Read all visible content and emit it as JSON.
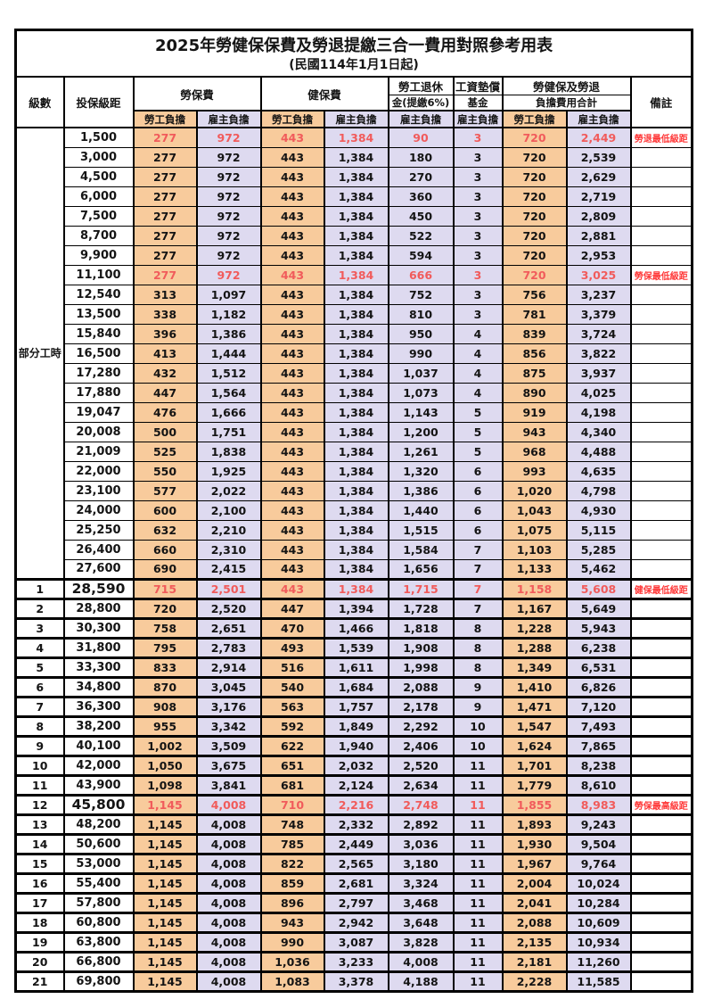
{
  "title": "2025年勞健保保費及勞退提繳三合一費用對照參考用表",
  "subtitle": "(民國114年1月1日起)",
  "header": {
    "grade": "級數",
    "bracket": "投保級距",
    "labor_insurance": "勞保費",
    "health_insurance": "健保費",
    "pension_line1": "勞工退休",
    "pension_line2": "金(提繳6%)",
    "wage_fund_line1": "工資墊償",
    "wage_fund_line2": "基金",
    "total_line1": "勞健保及勞退",
    "total_line2": "負擔費用合計",
    "remark": "備註",
    "employee": "勞工負擔",
    "employer": "雇主負擔"
  },
  "part_time_label": "部分工時",
  "colors": {
    "employee_bg": "#F8CB9C",
    "employer_bg": "#DEDAF0",
    "highlight_value_text": "#F15B5B",
    "remark_text": "#FF3838",
    "border": "#000000"
  },
  "rows": [
    {
      "section": "part",
      "grade": "",
      "bracket": "1,500",
      "values": [
        "277",
        "972",
        "443",
        "1,384",
        "90",
        "3",
        "720",
        "2,449"
      ],
      "remark": "勞退最低級距",
      "highlight": true,
      "bold_bracket": false
    },
    {
      "section": "part",
      "grade": "",
      "bracket": "3,000",
      "values": [
        "277",
        "972",
        "443",
        "1,384",
        "180",
        "3",
        "720",
        "2,539"
      ],
      "remark": "",
      "highlight": false,
      "bold_bracket": false
    },
    {
      "section": "part",
      "grade": "",
      "bracket": "4,500",
      "values": [
        "277",
        "972",
        "443",
        "1,384",
        "270",
        "3",
        "720",
        "2,629"
      ],
      "remark": "",
      "highlight": false,
      "bold_bracket": false
    },
    {
      "section": "part",
      "grade": "",
      "bracket": "6,000",
      "values": [
        "277",
        "972",
        "443",
        "1,384",
        "360",
        "3",
        "720",
        "2,719"
      ],
      "remark": "",
      "highlight": false,
      "bold_bracket": false
    },
    {
      "section": "part",
      "grade": "",
      "bracket": "7,500",
      "values": [
        "277",
        "972",
        "443",
        "1,384",
        "450",
        "3",
        "720",
        "2,809"
      ],
      "remark": "",
      "highlight": false,
      "bold_bracket": false
    },
    {
      "section": "part",
      "grade": "",
      "bracket": "8,700",
      "values": [
        "277",
        "972",
        "443",
        "1,384",
        "522",
        "3",
        "720",
        "2,881"
      ],
      "remark": "",
      "highlight": false,
      "bold_bracket": false
    },
    {
      "section": "part",
      "grade": "",
      "bracket": "9,900",
      "values": [
        "277",
        "972",
        "443",
        "1,384",
        "594",
        "3",
        "720",
        "2,953"
      ],
      "remark": "",
      "highlight": false,
      "bold_bracket": false
    },
    {
      "section": "part",
      "grade": "",
      "bracket": "11,100",
      "values": [
        "277",
        "972",
        "443",
        "1,384",
        "666",
        "3",
        "720",
        "3,025"
      ],
      "remark": "勞保最低級距",
      "highlight": true,
      "bold_bracket": false
    },
    {
      "section": "part",
      "grade": "",
      "bracket": "12,540",
      "values": [
        "313",
        "1,097",
        "443",
        "1,384",
        "752",
        "3",
        "756",
        "3,237"
      ],
      "remark": "",
      "highlight": false,
      "bold_bracket": false
    },
    {
      "section": "part",
      "grade": "",
      "bracket": "13,500",
      "values": [
        "338",
        "1,182",
        "443",
        "1,384",
        "810",
        "3",
        "781",
        "3,379"
      ],
      "remark": "",
      "highlight": false,
      "bold_bracket": false
    },
    {
      "section": "part",
      "grade": "",
      "bracket": "15,840",
      "values": [
        "396",
        "1,386",
        "443",
        "1,384",
        "950",
        "4",
        "839",
        "3,724"
      ],
      "remark": "",
      "highlight": false,
      "bold_bracket": false
    },
    {
      "section": "part",
      "grade": "",
      "bracket": "16,500",
      "values": [
        "413",
        "1,444",
        "443",
        "1,384",
        "990",
        "4",
        "856",
        "3,822"
      ],
      "remark": "",
      "highlight": false,
      "bold_bracket": false
    },
    {
      "section": "part",
      "grade": "",
      "bracket": "17,280",
      "values": [
        "432",
        "1,512",
        "443",
        "1,384",
        "1,037",
        "4",
        "875",
        "3,937"
      ],
      "remark": "",
      "highlight": false,
      "bold_bracket": false
    },
    {
      "section": "part",
      "grade": "",
      "bracket": "17,880",
      "values": [
        "447",
        "1,564",
        "443",
        "1,384",
        "1,073",
        "4",
        "890",
        "4,025"
      ],
      "remark": "",
      "highlight": false,
      "bold_bracket": false
    },
    {
      "section": "part",
      "grade": "",
      "bracket": "19,047",
      "values": [
        "476",
        "1,666",
        "443",
        "1,384",
        "1,143",
        "5",
        "919",
        "4,198"
      ],
      "remark": "",
      "highlight": false,
      "bold_bracket": false
    },
    {
      "section": "part",
      "grade": "",
      "bracket": "20,008",
      "values": [
        "500",
        "1,751",
        "443",
        "1,384",
        "1,200",
        "5",
        "943",
        "4,340"
      ],
      "remark": "",
      "highlight": false,
      "bold_bracket": false
    },
    {
      "section": "part",
      "grade": "",
      "bracket": "21,009",
      "values": [
        "525",
        "1,838",
        "443",
        "1,384",
        "1,261",
        "5",
        "968",
        "4,488"
      ],
      "remark": "",
      "highlight": false,
      "bold_bracket": false
    },
    {
      "section": "part",
      "grade": "",
      "bracket": "22,000",
      "values": [
        "550",
        "1,925",
        "443",
        "1,384",
        "1,320",
        "6",
        "993",
        "4,635"
      ],
      "remark": "",
      "highlight": false,
      "bold_bracket": false
    },
    {
      "section": "part",
      "grade": "",
      "bracket": "23,100",
      "values": [
        "577",
        "2,022",
        "443",
        "1,384",
        "1,386",
        "6",
        "1,020",
        "4,798"
      ],
      "remark": "",
      "highlight": false,
      "bold_bracket": false
    },
    {
      "section": "part",
      "grade": "",
      "bracket": "24,000",
      "values": [
        "600",
        "2,100",
        "443",
        "1,384",
        "1,440",
        "6",
        "1,043",
        "4,930"
      ],
      "remark": "",
      "highlight": false,
      "bold_bracket": false
    },
    {
      "section": "part",
      "grade": "",
      "bracket": "25,250",
      "values": [
        "632",
        "2,210",
        "443",
        "1,384",
        "1,515",
        "6",
        "1,075",
        "5,115"
      ],
      "remark": "",
      "highlight": false,
      "bold_bracket": false
    },
    {
      "section": "part",
      "grade": "",
      "bracket": "26,400",
      "values": [
        "660",
        "2,310",
        "443",
        "1,384",
        "1,584",
        "7",
        "1,103",
        "5,285"
      ],
      "remark": "",
      "highlight": false,
      "bold_bracket": false
    },
    {
      "section": "part",
      "grade": "",
      "bracket": "27,600",
      "values": [
        "690",
        "2,415",
        "443",
        "1,384",
        "1,656",
        "7",
        "1,133",
        "5,462"
      ],
      "remark": "",
      "highlight": false,
      "bold_bracket": false
    },
    {
      "section": "grade",
      "grade": "1",
      "bracket": "28,590",
      "values": [
        "715",
        "2,501",
        "443",
        "1,384",
        "1,715",
        "7",
        "1,158",
        "5,608"
      ],
      "remark": "健保最低級距",
      "highlight": true,
      "bold_bracket": true
    },
    {
      "section": "grade",
      "grade": "2",
      "bracket": "28,800",
      "values": [
        "720",
        "2,520",
        "447",
        "1,394",
        "1,728",
        "7",
        "1,167",
        "5,649"
      ],
      "remark": "",
      "highlight": false,
      "bold_bracket": false
    },
    {
      "section": "grade",
      "grade": "3",
      "bracket": "30,300",
      "values": [
        "758",
        "2,651",
        "470",
        "1,466",
        "1,818",
        "8",
        "1,228",
        "5,943"
      ],
      "remark": "",
      "highlight": false,
      "bold_bracket": false
    },
    {
      "section": "grade",
      "grade": "4",
      "bracket": "31,800",
      "values": [
        "795",
        "2,783",
        "493",
        "1,539",
        "1,908",
        "8",
        "1,288",
        "6,238"
      ],
      "remark": "",
      "highlight": false,
      "bold_bracket": false
    },
    {
      "section": "grade",
      "grade": "5",
      "bracket": "33,300",
      "values": [
        "833",
        "2,914",
        "516",
        "1,611",
        "1,998",
        "8",
        "1,349",
        "6,531"
      ],
      "remark": "",
      "highlight": false,
      "bold_bracket": false
    },
    {
      "section": "grade",
      "grade": "6",
      "bracket": "34,800",
      "values": [
        "870",
        "3,045",
        "540",
        "1,684",
        "2,088",
        "9",
        "1,410",
        "6,826"
      ],
      "remark": "",
      "highlight": false,
      "bold_bracket": false
    },
    {
      "section": "grade",
      "grade": "7",
      "bracket": "36,300",
      "values": [
        "908",
        "3,176",
        "563",
        "1,757",
        "2,178",
        "9",
        "1,471",
        "7,120"
      ],
      "remark": "",
      "highlight": false,
      "bold_bracket": false
    },
    {
      "section": "grade",
      "grade": "8",
      "bracket": "38,200",
      "values": [
        "955",
        "3,342",
        "592",
        "1,849",
        "2,292",
        "10",
        "1,547",
        "7,493"
      ],
      "remark": "",
      "highlight": false,
      "bold_bracket": false
    },
    {
      "section": "grade",
      "grade": "9",
      "bracket": "40,100",
      "values": [
        "1,002",
        "3,509",
        "622",
        "1,940",
        "2,406",
        "10",
        "1,624",
        "7,865"
      ],
      "remark": "",
      "highlight": false,
      "bold_bracket": false
    },
    {
      "section": "grade",
      "grade": "10",
      "bracket": "42,000",
      "values": [
        "1,050",
        "3,675",
        "651",
        "2,032",
        "2,520",
        "11",
        "1,701",
        "8,238"
      ],
      "remark": "",
      "highlight": false,
      "bold_bracket": false
    },
    {
      "section": "grade",
      "grade": "11",
      "bracket": "43,900",
      "values": [
        "1,098",
        "3,841",
        "681",
        "2,124",
        "2,634",
        "11",
        "1,779",
        "8,610"
      ],
      "remark": "",
      "highlight": false,
      "bold_bracket": false
    },
    {
      "section": "grade",
      "grade": "12",
      "bracket": "45,800",
      "values": [
        "1,145",
        "4,008",
        "710",
        "2,216",
        "2,748",
        "11",
        "1,855",
        "8,983"
      ],
      "remark": "勞保最高級距",
      "highlight": true,
      "bold_bracket": true
    },
    {
      "section": "grade",
      "grade": "13",
      "bracket": "48,200",
      "values": [
        "1,145",
        "4,008",
        "748",
        "2,332",
        "2,892",
        "11",
        "1,893",
        "9,243"
      ],
      "remark": "",
      "highlight": false,
      "bold_bracket": false
    },
    {
      "section": "grade",
      "grade": "14",
      "bracket": "50,600",
      "values": [
        "1,145",
        "4,008",
        "785",
        "2,449",
        "3,036",
        "11",
        "1,930",
        "9,504"
      ],
      "remark": "",
      "highlight": false,
      "bold_bracket": false
    },
    {
      "section": "grade",
      "grade": "15",
      "bracket": "53,000",
      "values": [
        "1,145",
        "4,008",
        "822",
        "2,565",
        "3,180",
        "11",
        "1,967",
        "9,764"
      ],
      "remark": "",
      "highlight": false,
      "bold_bracket": false
    },
    {
      "section": "grade",
      "grade": "16",
      "bracket": "55,400",
      "values": [
        "1,145",
        "4,008",
        "859",
        "2,681",
        "3,324",
        "11",
        "2,004",
        "10,024"
      ],
      "remark": "",
      "highlight": false,
      "bold_bracket": false
    },
    {
      "section": "grade",
      "grade": "17",
      "bracket": "57,800",
      "values": [
        "1,145",
        "4,008",
        "896",
        "2,797",
        "3,468",
        "11",
        "2,041",
        "10,284"
      ],
      "remark": "",
      "highlight": false,
      "bold_bracket": false
    },
    {
      "section": "grade",
      "grade": "18",
      "bracket": "60,800",
      "values": [
        "1,145",
        "4,008",
        "943",
        "2,942",
        "3,648",
        "11",
        "2,088",
        "10,609"
      ],
      "remark": "",
      "highlight": false,
      "bold_bracket": false
    },
    {
      "section": "grade",
      "grade": "19",
      "bracket": "63,800",
      "values": [
        "1,145",
        "4,008",
        "990",
        "3,087",
        "3,828",
        "11",
        "2,135",
        "10,934"
      ],
      "remark": "",
      "highlight": false,
      "bold_bracket": false
    },
    {
      "section": "grade",
      "grade": "20",
      "bracket": "66,800",
      "values": [
        "1,145",
        "4,008",
        "1,036",
        "3,233",
        "4,008",
        "11",
        "2,181",
        "11,260"
      ],
      "remark": "",
      "highlight": false,
      "bold_bracket": false
    },
    {
      "section": "grade",
      "grade": "21",
      "bracket": "69,800",
      "values": [
        "1,145",
        "4,008",
        "1,083",
        "3,378",
        "4,188",
        "11",
        "2,228",
        "11,585"
      ],
      "remark": "",
      "highlight": false,
      "bold_bracket": false
    }
  ]
}
